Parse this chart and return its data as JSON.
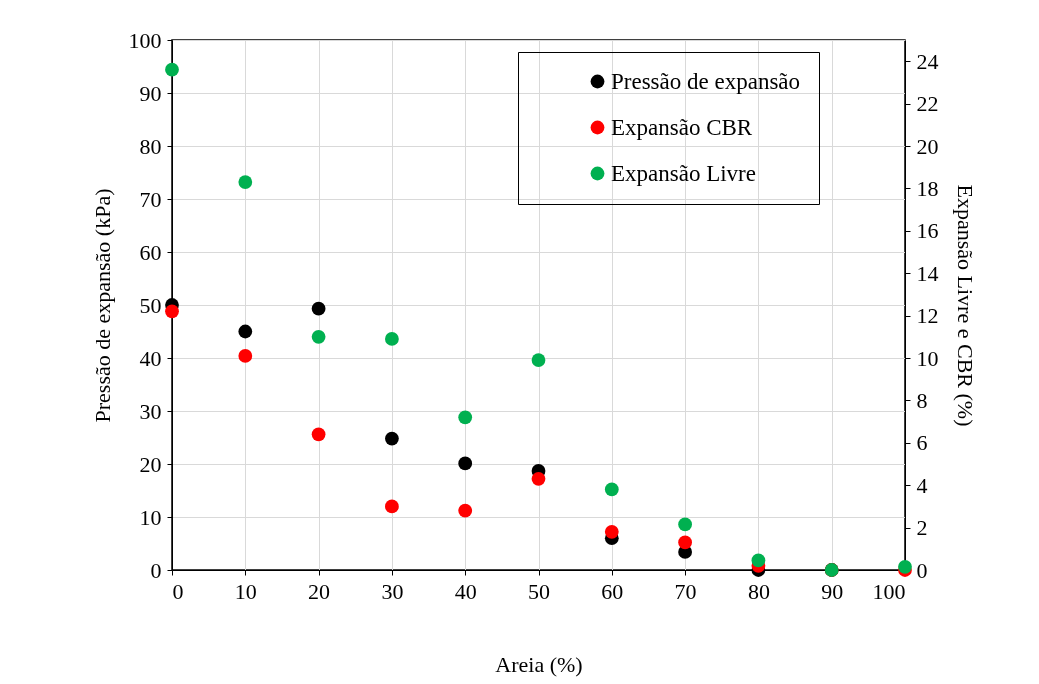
{
  "chart_data": {
    "type": "scatter",
    "xlabel": "Areia (%)",
    "ylabel": "Pressão de expansão (kPa)",
    "y2label": "Expansão Livre e CBR (%)",
    "x": [
      0,
      10,
      20,
      30,
      40,
      50,
      60,
      70,
      80,
      90,
      100
    ],
    "series": [
      {
        "name": "Pressão de expansão",
        "color": "#000000",
        "values": [
          50,
          45,
          49.3,
          24.8,
          20.1,
          18.7,
          6,
          3.4,
          0,
          0,
          null
        ]
      },
      {
        "name": "Expansão CBR",
        "color": "#ff0000",
        "axis": "y2",
        "values": [
          12.2,
          10.1,
          6.4,
          3.0,
          2.8,
          4.3,
          1.8,
          1.3,
          0.2,
          0,
          0
        ]
      },
      {
        "name": "Expansão Livre",
        "color": "#00b050",
        "axis": "y2",
        "values": [
          23.6,
          18.3,
          11.0,
          10.9,
          7.2,
          9.9,
          3.8,
          2.15,
          0.45,
          0,
          0.15
        ]
      }
    ],
    "xlim": [
      0,
      100
    ],
    "xticks": [
      0,
      10,
      20,
      30,
      40,
      50,
      60,
      70,
      80,
      90,
      100
    ],
    "ylim": [
      0,
      100
    ],
    "yticks": [
      0,
      10,
      20,
      30,
      40,
      50,
      60,
      70,
      80,
      90,
      100
    ],
    "y2lim": [
      0,
      25
    ],
    "y2ticks": [
      0,
      2,
      4,
      6,
      8,
      10,
      12,
      14,
      16,
      18,
      20,
      22,
      24
    ],
    "grid": true,
    "legend": "top right",
    "marker": "circle"
  }
}
